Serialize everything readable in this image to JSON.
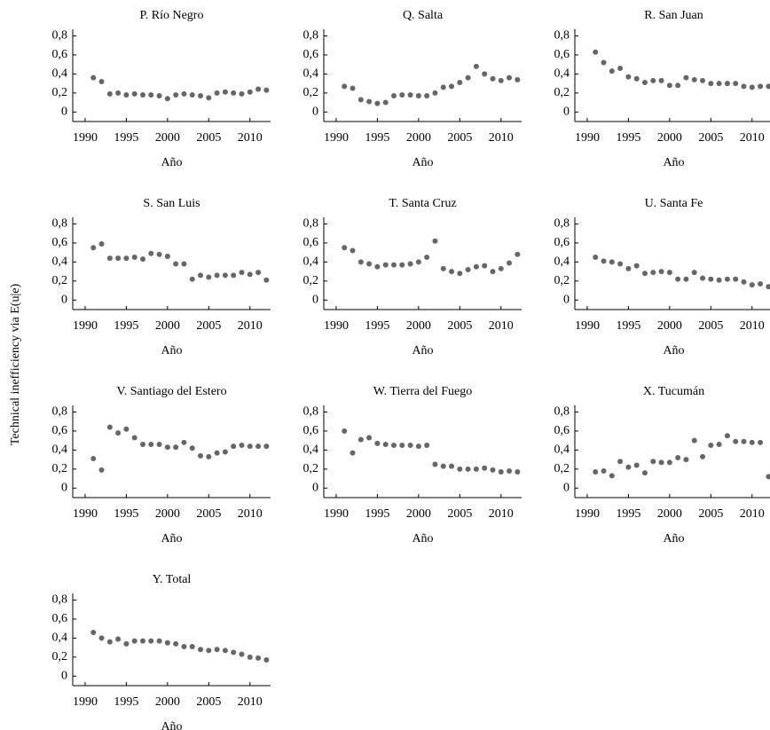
{
  "ylabel": "Technical inefficiency via E(u|e)",
  "chart_data": [
    {
      "type": "scatter",
      "title": "P. Río Negro",
      "xlabel": "Año",
      "color": "#666666",
      "x": [
        1991,
        1992,
        1993,
        1994,
        1995,
        1996,
        1997,
        1998,
        1999,
        2000,
        2001,
        2002,
        2003,
        2004,
        2005,
        2006,
        2007,
        2008,
        2009,
        2010,
        2011,
        2012
      ],
      "values": [
        0.36,
        0.32,
        0.19,
        0.2,
        0.18,
        0.19,
        0.18,
        0.18,
        0.17,
        0.14,
        0.18,
        0.19,
        0.18,
        0.17,
        0.15,
        0.2,
        0.21,
        0.2,
        0.19,
        0.21,
        0.24,
        0.23
      ],
      "xlim": [
        1988.5,
        2012.5
      ],
      "ylim": [
        -0.1,
        0.87
      ],
      "xticks": [
        1990,
        1995,
        2000,
        2005,
        2010
      ],
      "yticks": [
        0,
        {
          "value": 0.2,
          "label": "0,2"
        },
        {
          "value": 0.4,
          "label": "0,4"
        },
        {
          "value": 0.6,
          "label": "0,6"
        },
        {
          "value": 0.8,
          "label": "0,8"
        }
      ]
    },
    {
      "type": "scatter",
      "title": "Q. Salta",
      "xlabel": "Año",
      "color": "#666666",
      "x": [
        1991,
        1992,
        1993,
        1994,
        1995,
        1996,
        1997,
        1998,
        1999,
        2000,
        2001,
        2002,
        2003,
        2004,
        2005,
        2006,
        2007,
        2008,
        2009,
        2010,
        2011,
        2012
      ],
      "values": [
        0.27,
        0.25,
        0.13,
        0.11,
        0.09,
        0.1,
        0.17,
        0.18,
        0.18,
        0.17,
        0.17,
        0.2,
        0.26,
        0.27,
        0.31,
        0.36,
        0.48,
        0.4,
        0.35,
        0.33,
        0.36,
        0.34
      ],
      "xlim": [
        1988.5,
        2012.5
      ],
      "ylim": [
        -0.1,
        0.87
      ],
      "xticks": [
        1990,
        1995,
        2000,
        2005,
        2010
      ],
      "yticks": [
        0,
        {
          "value": 0.2,
          "label": "0,2"
        },
        {
          "value": 0.4,
          "label": "0,4"
        },
        {
          "value": 0.6,
          "label": "0,6"
        },
        {
          "value": 0.8,
          "label": "0,8"
        }
      ]
    },
    {
      "type": "scatter",
      "title": "R. San Juan",
      "xlabel": "Año",
      "color": "#666666",
      "x": [
        1991,
        1992,
        1993,
        1994,
        1995,
        1996,
        1997,
        1998,
        1999,
        2000,
        2001,
        2002,
        2003,
        2004,
        2005,
        2006,
        2007,
        2008,
        2009,
        2010,
        2011,
        2012
      ],
      "values": [
        0.63,
        0.52,
        0.43,
        0.46,
        0.37,
        0.35,
        0.31,
        0.33,
        0.33,
        0.28,
        0.28,
        0.36,
        0.34,
        0.33,
        0.3,
        0.3,
        0.3,
        0.3,
        0.27,
        0.26,
        0.27,
        0.27
      ],
      "xlim": [
        1988.5,
        2012.5
      ],
      "ylim": [
        -0.1,
        0.87
      ],
      "xticks": [
        1990,
        1995,
        2000,
        2005,
        2010
      ],
      "yticks": [
        0,
        {
          "value": 0.2,
          "label": "0,2"
        },
        {
          "value": 0.4,
          "label": "0,4"
        },
        {
          "value": 0.6,
          "label": "0,6"
        },
        {
          "value": 0.8,
          "label": "0,8"
        }
      ]
    },
    {
      "type": "scatter",
      "title": "S. San Luis",
      "xlabel": "Año",
      "color": "#666666",
      "x": [
        1991,
        1992,
        1993,
        1994,
        1995,
        1996,
        1997,
        1998,
        1999,
        2000,
        2001,
        2002,
        2003,
        2004,
        2005,
        2006,
        2007,
        2008,
        2009,
        2010,
        2011,
        2012
      ],
      "values": [
        0.55,
        0.59,
        0.44,
        0.44,
        0.44,
        0.45,
        0.43,
        0.49,
        0.48,
        0.46,
        0.38,
        0.38,
        0.22,
        0.26,
        0.24,
        0.26,
        0.26,
        0.26,
        0.29,
        0.27,
        0.29,
        0.21
      ],
      "xlim": [
        1988.5,
        2012.5
      ],
      "ylim": [
        -0.1,
        0.87
      ],
      "xticks": [
        1990,
        1995,
        2000,
        2005,
        2010
      ],
      "yticks": [
        0,
        {
          "value": 0.2,
          "label": "0,2"
        },
        {
          "value": 0.4,
          "label": "0,4"
        },
        {
          "value": 0.6,
          "label": "0,6"
        },
        {
          "value": 0.8,
          "label": "0,8"
        }
      ]
    },
    {
      "type": "scatter",
      "title": "T. Santa Cruz",
      "xlabel": "Año",
      "color": "#666666",
      "x": [
        1991,
        1992,
        1993,
        1994,
        1995,
        1996,
        1997,
        1998,
        1999,
        2000,
        2001,
        2002,
        2003,
        2004,
        2005,
        2006,
        2007,
        2008,
        2009,
        2010,
        2011,
        2012
      ],
      "values": [
        0.55,
        0.52,
        0.4,
        0.38,
        0.35,
        0.37,
        0.37,
        0.37,
        0.38,
        0.4,
        0.45,
        0.62,
        0.33,
        0.3,
        0.28,
        0.32,
        0.35,
        0.36,
        0.3,
        0.33,
        0.39,
        0.48
      ],
      "xlim": [
        1988.5,
        2012.5
      ],
      "ylim": [
        -0.1,
        0.87
      ],
      "xticks": [
        1990,
        1995,
        2000,
        2005,
        2010
      ],
      "yticks": [
        0,
        {
          "value": 0.2,
          "label": "0,2"
        },
        {
          "value": 0.4,
          "label": "0,4"
        },
        {
          "value": 0.6,
          "label": "0,6"
        },
        {
          "value": 0.8,
          "label": "0,8"
        }
      ]
    },
    {
      "type": "scatter",
      "title": "U. Santa Fe",
      "xlabel": "Año",
      "color": "#666666",
      "x": [
        1991,
        1992,
        1993,
        1994,
        1995,
        1996,
        1997,
        1998,
        1999,
        2000,
        2001,
        2002,
        2003,
        2004,
        2005,
        2006,
        2007,
        2008,
        2009,
        2010,
        2011,
        2012
      ],
      "values": [
        0.45,
        0.41,
        0.4,
        0.38,
        0.33,
        0.36,
        0.28,
        0.29,
        0.3,
        0.29,
        0.22,
        0.22,
        0.29,
        0.23,
        0.22,
        0.21,
        0.22,
        0.22,
        0.19,
        0.16,
        0.17,
        0.14
      ],
      "xlim": [
        1988.5,
        2012.5
      ],
      "ylim": [
        -0.1,
        0.87
      ],
      "xticks": [
        1990,
        1995,
        2000,
        2005,
        2010
      ],
      "yticks": [
        0,
        {
          "value": 0.2,
          "label": "0,2"
        },
        {
          "value": 0.4,
          "label": "0,4"
        },
        {
          "value": 0.6,
          "label": "0,6"
        },
        {
          "value": 0.8,
          "label": "0,8"
        }
      ]
    },
    {
      "type": "scatter",
      "title": "V. Santiago del Estero",
      "xlabel": "Año",
      "color": "#666666",
      "x": [
        1991,
        1992,
        1993,
        1994,
        1995,
        1996,
        1997,
        1998,
        1999,
        2000,
        2001,
        2002,
        2003,
        2004,
        2005,
        2006,
        2007,
        2008,
        2009,
        2010,
        2011,
        2012
      ],
      "values": [
        0.31,
        0.19,
        0.64,
        0.58,
        0.62,
        0.53,
        0.46,
        0.46,
        0.46,
        0.43,
        0.43,
        0.48,
        0.42,
        0.34,
        0.33,
        0.37,
        0.38,
        0.44,
        0.45,
        0.44,
        0.44,
        0.44
      ],
      "xlim": [
        1988.5,
        2012.5
      ],
      "ylim": [
        -0.1,
        0.87
      ],
      "xticks": [
        1990,
        1995,
        2000,
        2005,
        2010
      ],
      "yticks": [
        0,
        {
          "value": 0.2,
          "label": "0,2"
        },
        {
          "value": 0.4,
          "label": "0,4"
        },
        {
          "value": 0.6,
          "label": "0,6"
        },
        {
          "value": 0.8,
          "label": "0,8"
        }
      ]
    },
    {
      "type": "scatter",
      "title": "W. Tierra del Fuego",
      "xlabel": "Año",
      "color": "#666666",
      "x": [
        1991,
        1992,
        1993,
        1994,
        1995,
        1996,
        1997,
        1998,
        1999,
        2000,
        2001,
        2002,
        2003,
        2004,
        2005,
        2006,
        2007,
        2008,
        2009,
        2010,
        2011,
        2012
      ],
      "values": [
        0.6,
        0.37,
        0.51,
        0.53,
        0.47,
        0.46,
        0.45,
        0.45,
        0.45,
        0.44,
        0.45,
        0.25,
        0.23,
        0.23,
        0.2,
        0.2,
        0.2,
        0.21,
        0.19,
        0.17,
        0.18,
        0.17
      ],
      "xlim": [
        1988.5,
        2012.5
      ],
      "ylim": [
        -0.1,
        0.87
      ],
      "xticks": [
        1990,
        1995,
        2000,
        2005,
        2010
      ],
      "yticks": [
        0,
        {
          "value": 0.2,
          "label": "0,2"
        },
        {
          "value": 0.4,
          "label": "0,4"
        },
        {
          "value": 0.6,
          "label": "0,6"
        },
        {
          "value": 0.8,
          "label": "0,8"
        }
      ]
    },
    {
      "type": "scatter",
      "title": "X. Tucumán",
      "xlabel": "Año",
      "color": "#666666",
      "x": [
        1991,
        1992,
        1993,
        1994,
        1995,
        1996,
        1997,
        1998,
        1999,
        2000,
        2001,
        2002,
        2003,
        2004,
        2005,
        2006,
        2007,
        2008,
        2009,
        2010,
        2011,
        2012
      ],
      "values": [
        0.17,
        0.18,
        0.13,
        0.28,
        0.22,
        0.24,
        0.16,
        0.28,
        0.27,
        0.27,
        0.32,
        0.3,
        0.5,
        0.33,
        0.45,
        0.46,
        0.55,
        0.49,
        0.49,
        0.48,
        0.48,
        0.12
      ],
      "xlim": [
        1988.5,
        2012.5
      ],
      "ylim": [
        -0.1,
        0.87
      ],
      "xticks": [
        1990,
        1995,
        2000,
        2005,
        2010
      ],
      "yticks": [
        0,
        {
          "value": 0.2,
          "label": "0,2"
        },
        {
          "value": 0.4,
          "label": "0,4"
        },
        {
          "value": 0.6,
          "label": "0,6"
        },
        {
          "value": 0.8,
          "label": "0,8"
        }
      ]
    },
    {
      "type": "scatter",
      "title": "Y. Total",
      "xlabel": "Año",
      "color": "#666666",
      "x": [
        1991,
        1992,
        1993,
        1994,
        1995,
        1996,
        1997,
        1998,
        1999,
        2000,
        2001,
        2002,
        2003,
        2004,
        2005,
        2006,
        2007,
        2008,
        2009,
        2010,
        2011,
        2012
      ],
      "values": [
        0.46,
        0.4,
        0.36,
        0.39,
        0.34,
        0.37,
        0.37,
        0.37,
        0.37,
        0.35,
        0.34,
        0.31,
        0.31,
        0.28,
        0.27,
        0.28,
        0.27,
        0.25,
        0.23,
        0.2,
        0.19,
        0.17
      ],
      "xlim": [
        1988.5,
        2012.5
      ],
      "ylim": [
        -0.1,
        0.87
      ],
      "xticks": [
        1990,
        1995,
        2000,
        2005,
        2010
      ],
      "yticks": [
        0,
        {
          "value": 0.2,
          "label": "0,2"
        },
        {
          "value": 0.4,
          "label": "0,4"
        },
        {
          "value": 0.6,
          "label": "0,6"
        },
        {
          "value": 0.8,
          "label": "0,8"
        }
      ]
    }
  ]
}
